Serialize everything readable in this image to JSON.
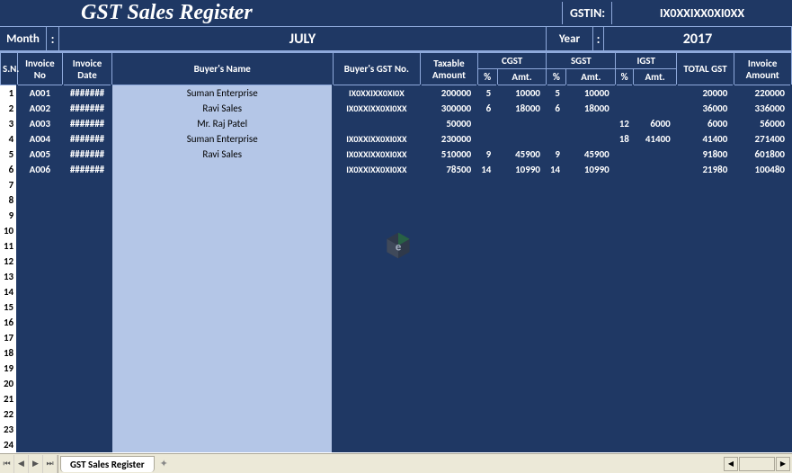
{
  "title": "GST Sales Register",
  "gstin_label": "GSTIN:",
  "gstin_value": "IX0XXIXX0XI0XX",
  "month_label": "Month",
  "month_value": "JULY",
  "year_label": "Year",
  "year_value": "2017",
  "colon": ":",
  "headers": {
    "sn": "S.N.",
    "inv_no": "Invoice No",
    "inv_date": "Invoice Date",
    "buyer": "Buyer's Name",
    "buyer_gst": "Buyer's GST No.",
    "taxable": "Taxable Amount",
    "cgst": "CGST",
    "sgst": "SGST",
    "igst": "IGST",
    "pct": "%",
    "amt": "Amt.",
    "total_gst": "TOTAL GST",
    "inv_amt": "Invoice Amount"
  },
  "rows": [
    {
      "sn": "1",
      "inv_no": "A001",
      "inv_date": "#######",
      "buyer": "Suman Enterprise",
      "gst": "IX0XXIXX0XI0X",
      "taxable": "200000",
      "cgst_p": "5",
      "cgst_a": "10000",
      "sgst_p": "5",
      "sgst_a": "10000",
      "igst_p": "",
      "igst_a": "",
      "total": "20000",
      "inv_amt": "220000"
    },
    {
      "sn": "2",
      "inv_no": "A002",
      "inv_date": "#######",
      "buyer": "Ravi Sales",
      "gst": "IX0XXIXX0XI0XX",
      "taxable": "300000",
      "cgst_p": "6",
      "cgst_a": "18000",
      "sgst_p": "6",
      "sgst_a": "18000",
      "igst_p": "",
      "igst_a": "",
      "total": "36000",
      "inv_amt": "336000"
    },
    {
      "sn": "3",
      "inv_no": "A003",
      "inv_date": "#######",
      "buyer": "Mr. Raj Patel",
      "gst": "",
      "taxable": "50000",
      "cgst_p": "",
      "cgst_a": "",
      "sgst_p": "",
      "sgst_a": "",
      "igst_p": "12",
      "igst_a": "6000",
      "total": "6000",
      "inv_amt": "56000"
    },
    {
      "sn": "4",
      "inv_no": "A004",
      "inv_date": "#######",
      "buyer": "Suman Enterprise",
      "gst": "IX0XXIXX0XI0XX",
      "taxable": "230000",
      "cgst_p": "",
      "cgst_a": "",
      "sgst_p": "",
      "sgst_a": "",
      "igst_p": "18",
      "igst_a": "41400",
      "total": "41400",
      "inv_amt": "271400"
    },
    {
      "sn": "5",
      "inv_no": "A005",
      "inv_date": "#######",
      "buyer": "Ravi Sales",
      "gst": "IX0XXIXX0XI0XX",
      "taxable": "510000",
      "cgst_p": "9",
      "cgst_a": "45900",
      "sgst_p": "9",
      "sgst_a": "45900",
      "igst_p": "",
      "igst_a": "",
      "total": "91800",
      "inv_amt": "601800"
    },
    {
      "sn": "6",
      "inv_no": "A006",
      "inv_date": "#######",
      "buyer": "",
      "gst": "IX0XXIXX0XI0XX",
      "taxable": "78500",
      "cgst_p": "14",
      "cgst_a": "10990",
      "sgst_p": "14",
      "sgst_a": "10990",
      "igst_p": "",
      "igst_a": "",
      "total": "21980",
      "inv_amt": "100480"
    }
  ],
  "empty_rows": [
    "7",
    "8",
    "9",
    "10",
    "11",
    "12",
    "13",
    "14",
    "15",
    "16",
    "17",
    "18",
    "19",
    "20",
    "21",
    "22",
    "23",
    "24"
  ],
  "tab_name": "GST Sales Register",
  "colors": {
    "dark": "#1f3864",
    "light": "#b4c6e7",
    "border": "#8ea9db"
  },
  "col_widths": {
    "sn": 17,
    "inv_no": 46,
    "inv_date": 50,
    "buyer": 224,
    "gst": 89,
    "taxable": 58,
    "pct": 20,
    "amt": 50,
    "igst_p": 18,
    "igst_a": 44,
    "total": 58,
    "inv_amt": 58
  }
}
